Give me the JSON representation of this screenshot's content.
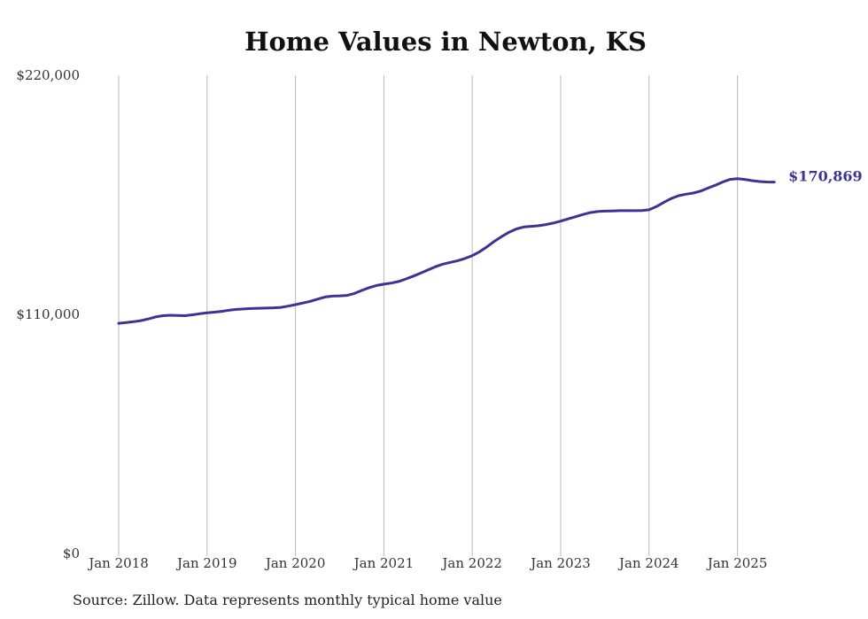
{
  "chart_data": {
    "type": "line",
    "title": "Home Values in Newton, KS",
    "xlabel": "",
    "ylabel": "",
    "ylim": [
      0,
      220000
    ],
    "y_ticks": [
      {
        "value": 0,
        "label": "$0"
      },
      {
        "value": 110000,
        "label": "$110,000"
      },
      {
        "value": 220000,
        "label": "$220,000"
      }
    ],
    "x_ticks": [
      "Jan 2018",
      "Jan 2019",
      "Jan 2020",
      "Jan 2021",
      "Jan 2022",
      "Jan 2023",
      "Jan 2024",
      "Jan 2025"
    ],
    "grid": "vertical",
    "series": [
      {
        "color": "#3b3494",
        "x": [
          "2018-01",
          "2018-02",
          "2018-03",
          "2018-04",
          "2018-05",
          "2018-06",
          "2018-07",
          "2018-08",
          "2018-09",
          "2018-10",
          "2018-11",
          "2018-12",
          "2019-01",
          "2019-02",
          "2019-03",
          "2019-04",
          "2019-05",
          "2019-06",
          "2019-07",
          "2019-08",
          "2019-09",
          "2019-10",
          "2019-11",
          "2019-12",
          "2020-01",
          "2020-02",
          "2020-03",
          "2020-04",
          "2020-05",
          "2020-06",
          "2020-07",
          "2020-08",
          "2020-09",
          "2020-10",
          "2020-11",
          "2020-12",
          "2021-01",
          "2021-02",
          "2021-03",
          "2021-04",
          "2021-05",
          "2021-06",
          "2021-07",
          "2021-08",
          "2021-09",
          "2021-10",
          "2021-11",
          "2021-12",
          "2022-01",
          "2022-02",
          "2022-03",
          "2022-04",
          "2022-05",
          "2022-06",
          "2022-07",
          "2022-08",
          "2022-09",
          "2022-10",
          "2022-11",
          "2022-12",
          "2023-01",
          "2023-02",
          "2023-03",
          "2023-04",
          "2023-05",
          "2023-06",
          "2023-07",
          "2023-08",
          "2023-09",
          "2023-10",
          "2023-11",
          "2023-12",
          "2024-01",
          "2024-02",
          "2024-03",
          "2024-04",
          "2024-05",
          "2024-06",
          "2024-07",
          "2024-08",
          "2024-09",
          "2024-10",
          "2024-11",
          "2024-12",
          "2025-01",
          "2025-02",
          "2025-03",
          "2025-04",
          "2025-05",
          "2025-06"
        ],
        "values": [
          105900,
          106200,
          106600,
          107100,
          107900,
          108800,
          109400,
          109600,
          109500,
          109400,
          109800,
          110300,
          110700,
          111000,
          111400,
          111900,
          112300,
          112500,
          112700,
          112800,
          112900,
          113000,
          113200,
          113800,
          114500,
          115200,
          116000,
          117000,
          118000,
          118400,
          118500,
          118700,
          119600,
          121000,
          122300,
          123300,
          123900,
          124400,
          125100,
          126300,
          127600,
          129000,
          130500,
          131900,
          133100,
          133900,
          134700,
          135700,
          137000,
          138800,
          141100,
          143600,
          145800,
          147800,
          149300,
          150200,
          150500,
          150800,
          151300,
          152000,
          152900,
          153900,
          154900,
          155900,
          156800,
          157300,
          157500,
          157600,
          157700,
          157700,
          157700,
          157800,
          158100,
          159600,
          161500,
          163300,
          164600,
          165300,
          165800,
          166700,
          168100,
          169400,
          170900,
          172100,
          172400,
          172100,
          171500,
          171100,
          170900,
          170869
        ]
      }
    ],
    "end_label": "$170,869",
    "source": "Source: Zillow. Data represents monthly typical home value"
  }
}
